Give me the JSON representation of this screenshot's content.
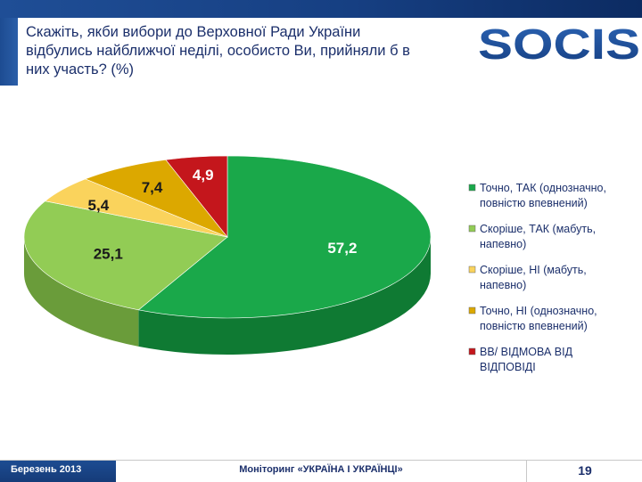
{
  "header": {
    "question_lines": [
      "Скажіть, якби вибори до Верховної Ради України",
      "відбулись найближчої неділі, особисто Ви, прийняли б в",
      "них участь? (%)"
    ],
    "logo_text": "SOCIS"
  },
  "colors": {
    "brand_blue": "#1d4c92",
    "title_text": "#1b2f6b",
    "yes_definitely": "#1aa84a",
    "yes_probably": "#92cc55",
    "no_probably": "#fad35c",
    "no_definitely": "#dca800",
    "refusal": "#c4161c"
  },
  "chart_data": {
    "type": "pie",
    "title": "",
    "unit": "%",
    "categories": [
      "Точно, ТАК (однозначно, повністю впевнений)",
      "Скоріше, ТАК (мабуть, напевно)",
      "Скоріше, НІ (мабуть, напевно)",
      "Точно, НІ (однозначно, повністю впевнений)",
      "ВВ/ ВІДМОВА ВІД ВІДПОВІДІ"
    ],
    "values": [
      57.2,
      25.1,
      5.4,
      7.4,
      4.9
    ],
    "value_labels": [
      "57,2",
      "25,1",
      "5,4",
      "7,4",
      "4,9"
    ],
    "colors": [
      "#1aa84a",
      "#92cc55",
      "#fad35c",
      "#dca800",
      "#c4161c"
    ],
    "side_colors": [
      "#0f7a33",
      "#6a9c3a",
      "#c9a338",
      "#a67d00",
      "#8c0d12"
    ],
    "legend_placement": "right",
    "start_angle_deg": 90,
    "direction": "clockwise",
    "3d": true
  },
  "legend": {
    "items": [
      {
        "line1": "Точно, ТАК (однозначно,",
        "line2": "повністю впевнений)"
      },
      {
        "line1": "Скоріше, ТАК (мабуть,",
        "line2": "напевно)"
      },
      {
        "line1": "Скоріше, НІ (мабуть,",
        "line2": "напевно)"
      },
      {
        "line1": "Точно, НІ (однозначно,",
        "line2": "повністю впевнений)"
      },
      {
        "line1": "ВВ/ ВІДМОВА ВІД",
        "line2": "ВІДПОВІДІ"
      }
    ]
  },
  "footer": {
    "date": "Березень 2013",
    "title": "Моніторинг «УКРАЇНА І УКРАЇНЦІ»",
    "page": "19"
  }
}
